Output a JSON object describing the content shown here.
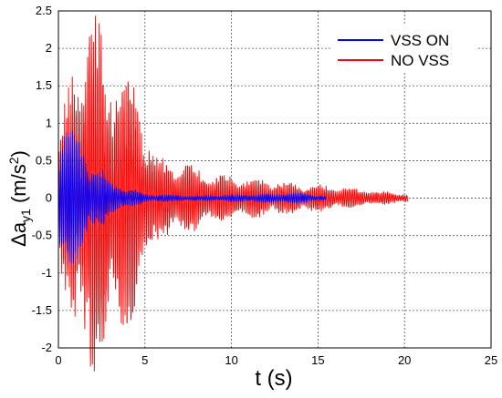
{
  "chart_data": {
    "type": "line",
    "xlabel": "t (s)",
    "ylabel": {
      "prefix": "Δa",
      "sub": "y1",
      "unit_open": " (m/s",
      "sup": "2",
      "unit_close": ")"
    },
    "xlim": [
      0,
      25
    ],
    "ylim": [
      -2,
      2.5
    ],
    "x_ticks": [
      0,
      5,
      10,
      15,
      20,
      25
    ],
    "y_ticks": [
      -2,
      -1.5,
      -1,
      -0.5,
      0,
      0.5,
      1,
      1.5,
      2,
      2.5
    ],
    "grid": true,
    "legend_position": "top-right",
    "series": [
      {
        "name": "VSS ON",
        "color": "#0000ff",
        "t_end": 15.5,
        "oscillation_hz": 9,
        "envelope": [
          {
            "t": 0,
            "a": 0.8
          },
          {
            "t": 0.5,
            "a": 0.85
          },
          {
            "t": 1.5,
            "a": 0.6
          },
          {
            "t": 3,
            "a": 0.2
          },
          {
            "t": 5,
            "a": 0.05
          },
          {
            "t": 8,
            "a": 0.03
          },
          {
            "t": 14,
            "a": 0.07
          },
          {
            "t": 15.5,
            "a": 0.02
          }
        ]
      },
      {
        "name": "NO VSS",
        "color": "#ff0000",
        "t_end": 20.2,
        "oscillation_hz": 9,
        "envelope": [
          {
            "t": 0,
            "a": 0.6
          },
          {
            "t": 0.8,
            "a": 1.6
          },
          {
            "t": 2,
            "a": 2.1
          },
          {
            "t": 3.5,
            "a": 1.6
          },
          {
            "t": 4.5,
            "a": 1.4
          },
          {
            "t": 5.5,
            "a": 0.5
          },
          {
            "t": 8,
            "a": 0.35
          },
          {
            "t": 10,
            "a": 0.25
          },
          {
            "t": 15,
            "a": 0.15
          },
          {
            "t": 20.2,
            "a": 0.05
          }
        ]
      }
    ]
  }
}
